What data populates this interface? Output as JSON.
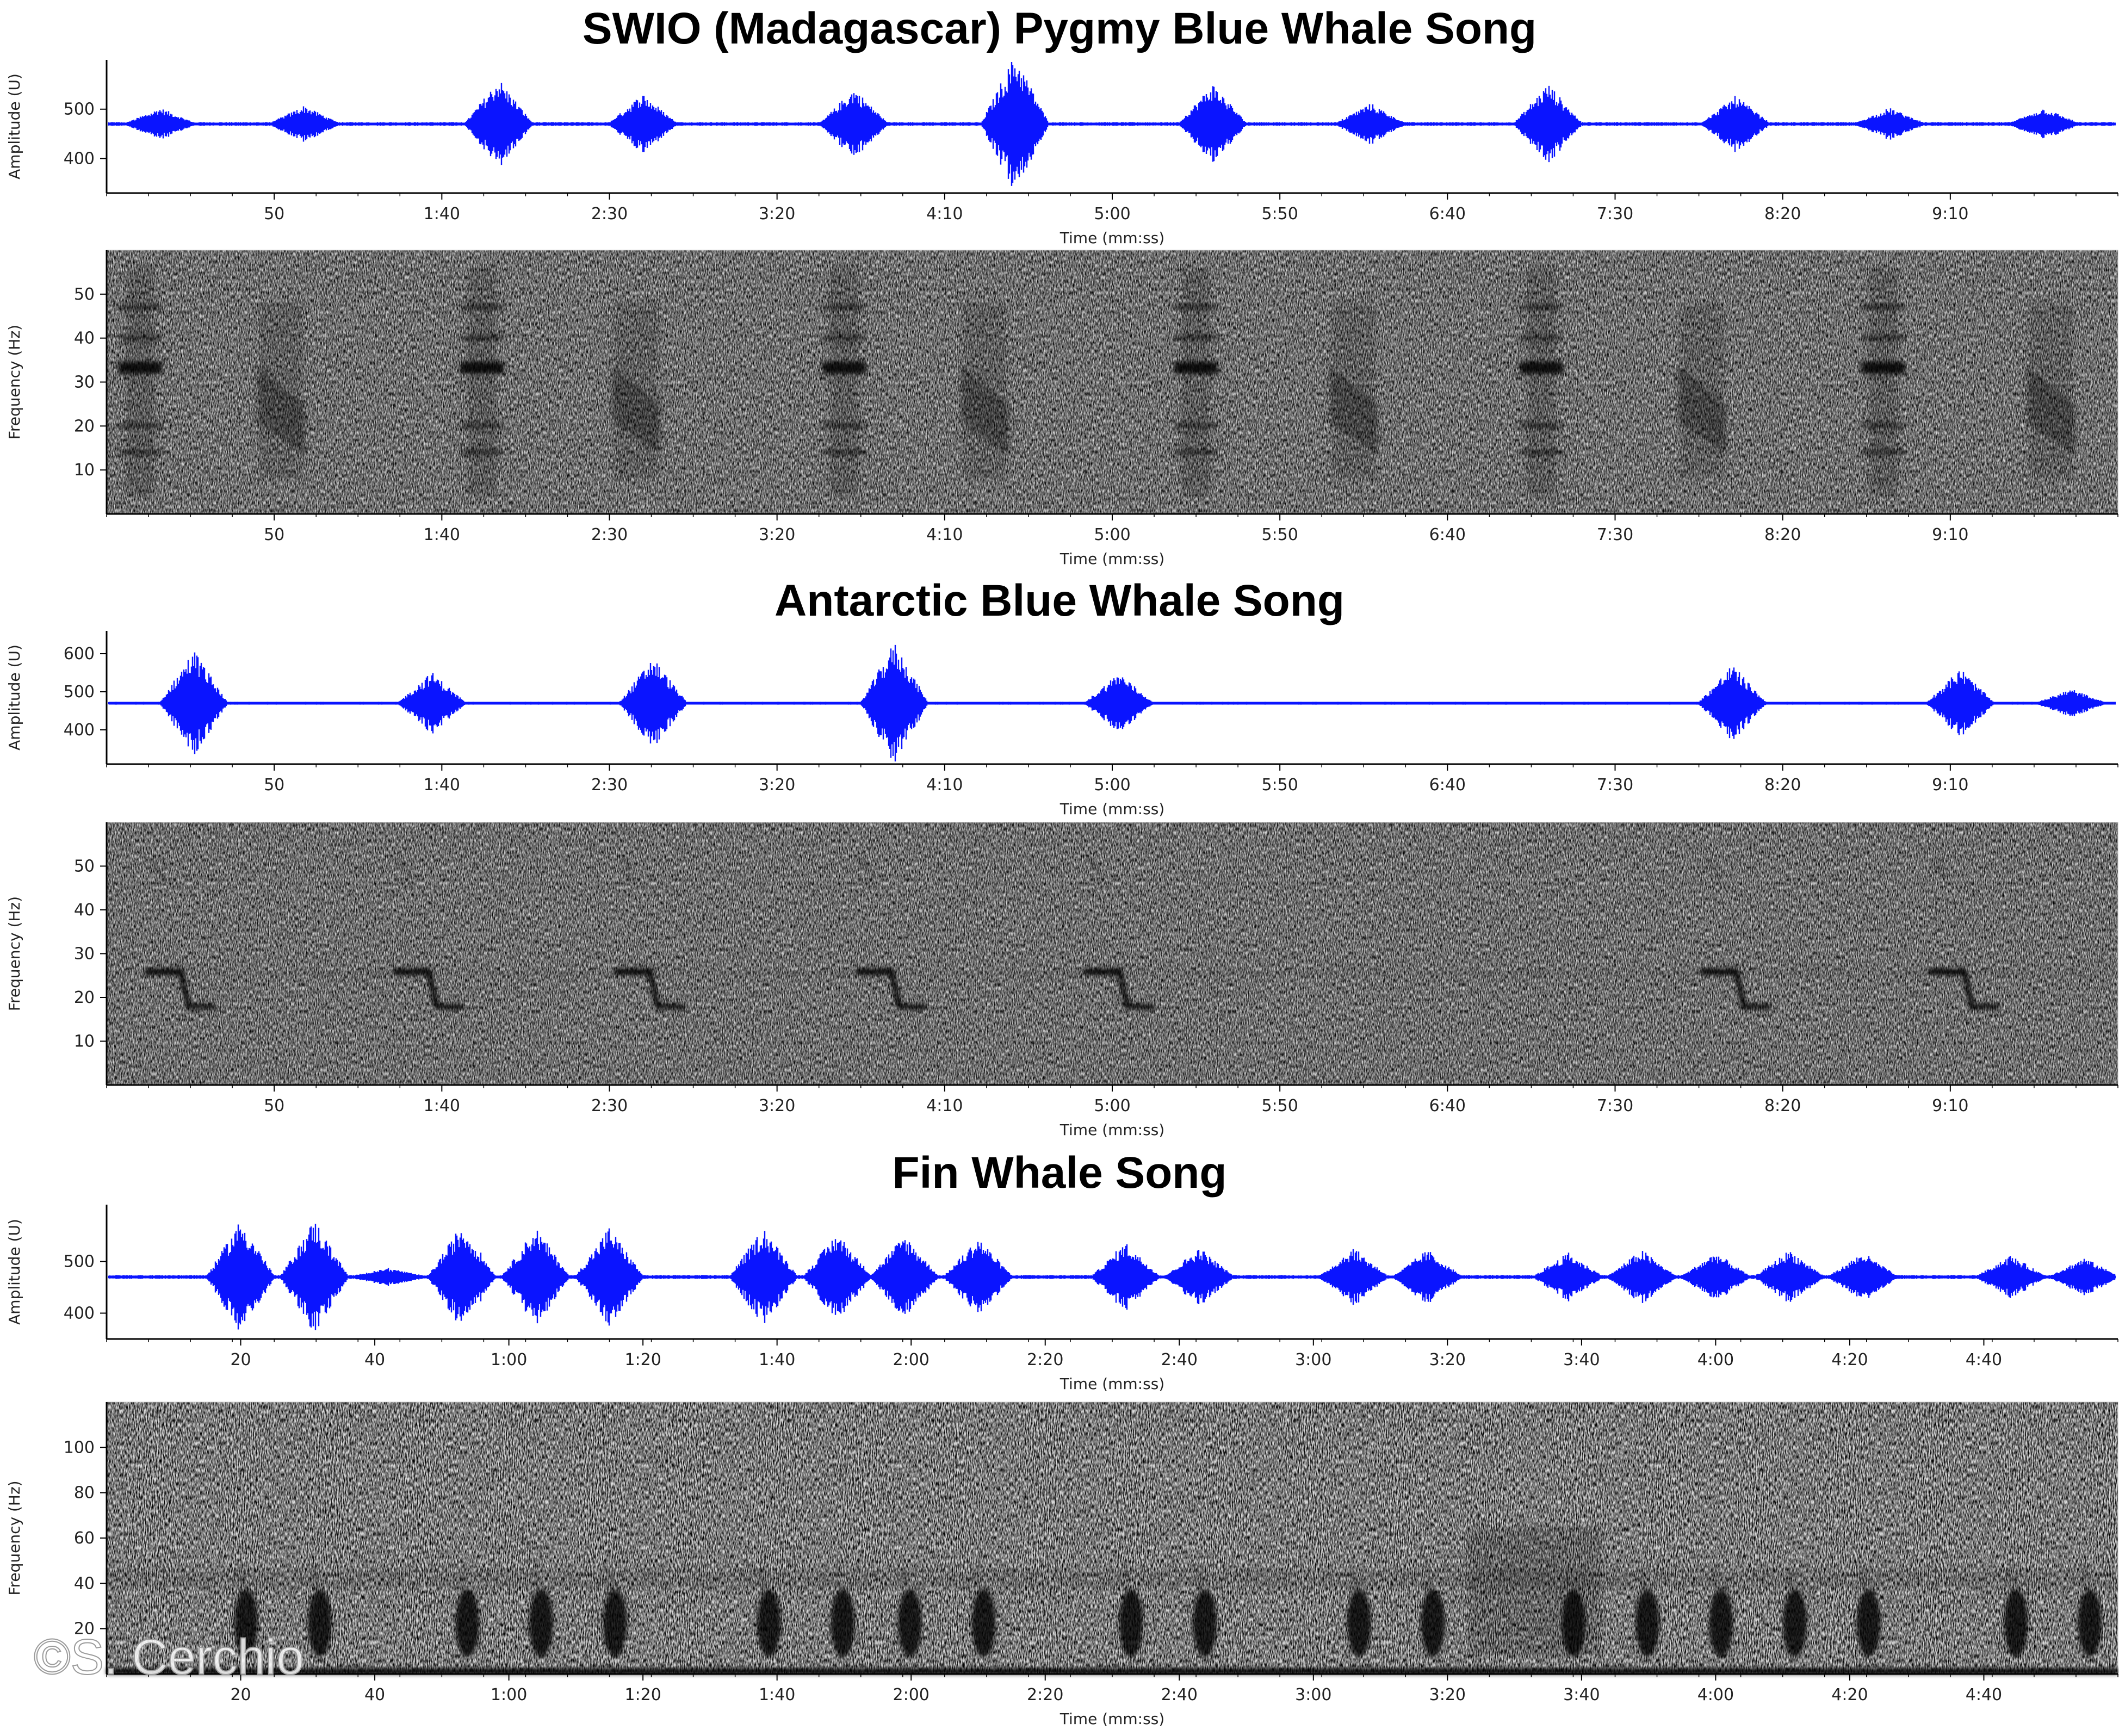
{
  "credit": "©S. Cerchio",
  "colors": {
    "waveform": "#0a14ff",
    "spectrogram_ink": "#000000",
    "axis": "#000000",
    "background": "#ffffff"
  },
  "chart_data": [
    {
      "type": "area",
      "panel": "waveform",
      "title": "SWIO (Madagascar) Pygmy Blue Whale Song",
      "xlabel": "Time (mm:ss)",
      "ylabel": "Amplitude (U)",
      "xlim": [
        0,
        600
      ],
      "ylim": [
        330,
        600
      ],
      "baseline": 470,
      "xticks": [
        50,
        100,
        150,
        200,
        250,
        300,
        350,
        400,
        450,
        500,
        550
      ],
      "xtick_labels": [
        "50",
        "1:40",
        "2:30",
        "3:20",
        "4:10",
        "5:00",
        "5:50",
        "6:40",
        "7:30",
        "8:20",
        "9:10"
      ],
      "yticks": [
        400,
        500
      ],
      "ytick_labels": [
        "400",
        "500"
      ],
      "series": [
        {
          "name": "",
          "x": [
            16,
            59,
            117,
            160,
            223,
            271,
            330,
            377,
            430,
            486,
            532,
            578
          ],
          "values": [
            30,
            35,
            90,
            60,
            70,
            140,
            80,
            40,
            80,
            55,
            30,
            30
          ]
        }
      ]
    },
    {
      "type": "heatmap",
      "panel": "spectrogram",
      "xlabel": "Time (mm:ss)",
      "ylabel": "Frequency (Hz)",
      "xlim": [
        0,
        600
      ],
      "ylim": [
        0,
        60
      ],
      "xticks": [
        50,
        100,
        150,
        200,
        250,
        300,
        350,
        400,
        450,
        500,
        550
      ],
      "xtick_labels": [
        "50",
        "1:40",
        "2:30",
        "3:20",
        "4:10",
        "5:00",
        "5:50",
        "6:40",
        "7:30",
        "8:20",
        "9:10"
      ],
      "yticks": [
        10,
        20,
        30,
        40,
        50
      ],
      "ytick_labels": [
        "10",
        "20",
        "30",
        "40",
        "50"
      ],
      "unit_a_times": [
        10,
        112,
        220,
        325,
        428,
        530
      ],
      "unit_a_harmonics": [
        14,
        20,
        34,
        40,
        47
      ],
      "unit_b_times": [
        52,
        158,
        262,
        372,
        476,
        580
      ]
    },
    {
      "type": "area",
      "panel": "waveform",
      "title": "Antarctic Blue Whale Song",
      "xlabel": "Time (mm:ss)",
      "ylabel": "Amplitude (U)",
      "xlim": [
        0,
        600
      ],
      "ylim": [
        310,
        660
      ],
      "baseline": 470,
      "xticks": [
        50,
        100,
        150,
        200,
        250,
        300,
        350,
        400,
        450,
        500,
        550
      ],
      "xtick_labels": [
        "50",
        "1:40",
        "2:30",
        "3:20",
        "4:10",
        "5:00",
        "5:50",
        "6:40",
        "7:30",
        "8:20",
        "9:10"
      ],
      "yticks": [
        400,
        500,
        600
      ],
      "ytick_labels": [
        "400",
        "500",
        "600"
      ],
      "series": [
        {
          "name": "",
          "x": [
            26,
            97,
            163,
            235,
            302,
            485,
            553,
            586
          ],
          "values": [
            140,
            80,
            120,
            160,
            80,
            100,
            90,
            35
          ]
        }
      ]
    },
    {
      "type": "heatmap",
      "panel": "spectrogram",
      "xlabel": "Time (mm:ss)",
      "ylabel": "Frequency (Hz)",
      "xlim": [
        0,
        600
      ],
      "ylim": [
        0,
        60
      ],
      "xticks": [
        50,
        100,
        150,
        200,
        250,
        300,
        350,
        400,
        450,
        500,
        550
      ],
      "xtick_labels": [
        "50",
        "1:40",
        "2:30",
        "3:20",
        "4:10",
        "5:00",
        "5:50",
        "6:40",
        "7:30",
        "8:20",
        "9:10"
      ],
      "yticks": [
        10,
        20,
        30,
        40,
        50
      ],
      "ytick_labels": [
        "10",
        "20",
        "30",
        "40",
        "50"
      ],
      "call_times": [
        18,
        92,
        158,
        230,
        298,
        482,
        550
      ],
      "call_freq_start": 26,
      "call_freq_end": 18
    },
    {
      "type": "area",
      "panel": "waveform",
      "title": "Fin Whale Song",
      "xlabel": "Time (mm:ss)",
      "ylabel": "Amplitude (U)",
      "xlim": [
        0,
        300
      ],
      "ylim": [
        350,
        610
      ],
      "baseline": 470,
      "xticks": [
        20,
        40,
        60,
        80,
        100,
        120,
        140,
        160,
        180,
        200,
        220,
        240,
        260,
        280
      ],
      "xtick_labels": [
        "20",
        "40",
        "1:00",
        "1:20",
        "1:40",
        "2:00",
        "2:20",
        "2:40",
        "3:00",
        "3:20",
        "3:40",
        "4:00",
        "4:20",
        "4:40"
      ],
      "yticks": [
        400,
        500
      ],
      "ytick_labels": [
        "400",
        "500"
      ],
      "series": [
        {
          "name": "",
          "x": [
            20,
            31,
            42,
            53,
            64,
            75,
            98,
            109,
            119,
            130,
            152,
            163,
            186,
            197,
            218,
            229,
            240,
            251,
            262,
            284,
            295
          ],
          "values": [
            110,
            110,
            15,
            100,
            95,
            95,
            95,
            85,
            80,
            75,
            65,
            55,
            55,
            50,
            45,
            50,
            45,
            50,
            45,
            40,
            35
          ]
        }
      ]
    },
    {
      "type": "heatmap",
      "panel": "spectrogram",
      "xlabel": "Time (mm:ss)",
      "ylabel": "Frequency (Hz)",
      "xlim": [
        0,
        300
      ],
      "ylim": [
        0,
        120
      ],
      "xticks": [
        20,
        40,
        60,
        80,
        100,
        120,
        140,
        160,
        180,
        200,
        220,
        240,
        260,
        280
      ],
      "xtick_labels": [
        "20",
        "40",
        "1:00",
        "1:20",
        "1:40",
        "2:00",
        "2:20",
        "2:40",
        "3:00",
        "3:20",
        "3:40",
        "4:00",
        "4:20",
        "4:40"
      ],
      "yticks": [
        20,
        40,
        60,
        80,
        100
      ],
      "ytick_labels": [
        "20",
        "40",
        "60",
        "80",
        "100"
      ],
      "pulse_times": [
        20,
        31,
        53,
        64,
        75,
        98,
        109,
        119,
        130,
        152,
        163,
        186,
        197,
        218,
        229,
        240,
        251,
        262,
        284,
        295
      ],
      "pulse_freq": [
        15,
        30
      ],
      "upper_band_hz": 42
    }
  ]
}
